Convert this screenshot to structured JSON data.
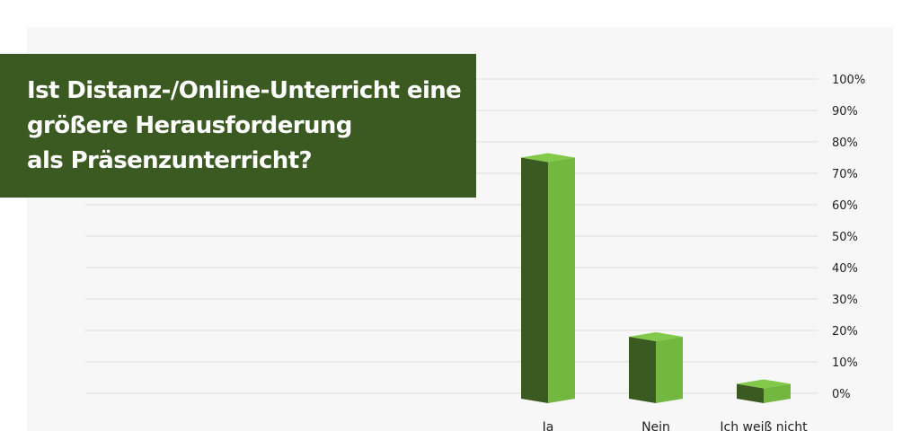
{
  "chart_data": {
    "type": "bar",
    "title_lines": [
      "Ist Distanz-/Online-Unterricht eine",
      "größere Herausforderung",
      "als Präsenzunterricht?"
    ],
    "categories": [
      "Ja",
      "Nein",
      "Ich weiß nicht"
    ],
    "values": [
      75,
      18,
      3
    ],
    "yticks": [
      "0%",
      "10%",
      "20%",
      "30%",
      "40%",
      "50%",
      "60%",
      "70%",
      "80%",
      "90%",
      "100%"
    ],
    "ylim": [
      0,
      100
    ],
    "grid": true,
    "legend": "none",
    "y_axis_position": "right",
    "colors": {
      "bar_front": "#73b83e",
      "bar_side": "#3b5a22",
      "bar_top": "#82c94a",
      "title_bg": "#3b5a22",
      "panel_bg": "#f7f7f7",
      "grid": "#dddddd"
    }
  }
}
